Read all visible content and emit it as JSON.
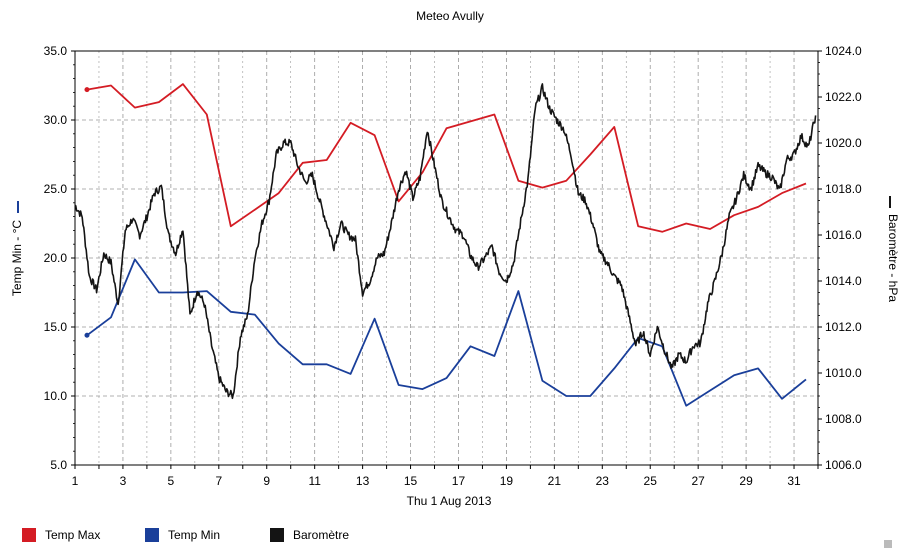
{
  "colors": {
    "temp_max": "#d41c24",
    "temp_min": "#1a3f9a",
    "barometre": "#141414",
    "grid": "#999999"
  },
  "chart_data": {
    "type": "line",
    "title": "Meteo  Avully",
    "xlabel": "Thu 1 Aug 2013",
    "ylabel_left": "Temp Min - °C",
    "ylabel_right": "Baromètre - hPa",
    "xlim": [
      1,
      32
    ],
    "ylim_left": [
      5,
      35
    ],
    "ylim_right": [
      1006,
      1024
    ],
    "x_ticks": [
      "1",
      "3",
      "5",
      "7",
      "9",
      "11",
      "13",
      "15",
      "17",
      "19",
      "21",
      "23",
      "25",
      "27",
      "29",
      "31"
    ],
    "y_left_ticks": [
      "5.0",
      "10.0",
      "15.0",
      "20.0",
      "25.0",
      "30.0",
      "35.0"
    ],
    "y_right_ticks": [
      "1006.0",
      "1008.0",
      "1010.0",
      "1012.0",
      "1014.0",
      "1016.0",
      "1018.0",
      "1020.0",
      "1022.0",
      "1024.0"
    ],
    "grid": true,
    "legend_position": "bottom-left",
    "series": [
      {
        "name": "Temp Max",
        "axis": "left",
        "x": [
          1.5,
          2.5,
          3.5,
          4.5,
          5.5,
          6.5,
          7.5,
          8.5,
          9.5,
          10.5,
          11.5,
          12.5,
          13.5,
          14.5,
          15.5,
          16.5,
          17.5,
          18.5,
          19.5,
          20.5,
          21.5,
          22.5,
          23.5,
          24.5,
          25.5,
          26.5,
          27.5,
          28.5,
          29.5,
          30.5,
          31.5
        ],
        "values": [
          32.2,
          32.5,
          30.9,
          31.3,
          32.6,
          30.4,
          22.3,
          23.5,
          24.7,
          26.9,
          27.1,
          29.8,
          28.9,
          24.1,
          26.2,
          29.4,
          29.9,
          30.4,
          25.6,
          25.1,
          25.6,
          27.5,
          29.5,
          22.3,
          21.9,
          22.5,
          22.1,
          23.1,
          23.7,
          24.7,
          25.4
        ]
      },
      {
        "name": "Temp Min",
        "axis": "left",
        "x": [
          1.5,
          2.5,
          3.5,
          4.5,
          5.5,
          6.5,
          7.5,
          8.5,
          9.5,
          10.5,
          11.5,
          12.5,
          13.5,
          14.5,
          15.5,
          16.5,
          17.5,
          18.5,
          19.5,
          20.5,
          21.5,
          22.5,
          23.5,
          24.5,
          25.5,
          26.5,
          27.5,
          28.5,
          29.5,
          30.5,
          31.5
        ],
        "values": [
          14.4,
          15.7,
          19.9,
          17.5,
          17.5,
          17.6,
          16.1,
          15.9,
          13.8,
          12.3,
          12.3,
          11.6,
          15.6,
          10.8,
          10.5,
          11.3,
          13.6,
          12.9,
          17.6,
          11.1,
          10.0,
          10.0,
          12.0,
          14.2,
          13.6,
          9.3,
          10.4,
          11.5,
          12.0,
          9.8,
          11.2
        ]
      },
      {
        "name": "Baromètre",
        "axis": "right",
        "x": [
          1,
          1.3,
          1.6,
          1.9,
          2.2,
          2.5,
          2.8,
          3.1,
          3.4,
          3.7,
          4,
          4.3,
          4.6,
          4.9,
          5.2,
          5.5,
          5.8,
          6.1,
          6.4,
          6.7,
          7,
          7.3,
          7.6,
          7.9,
          8.2,
          8.5,
          8.8,
          9.1,
          9.4,
          9.7,
          10,
          10.3,
          10.6,
          10.9,
          11.2,
          11.5,
          11.8,
          12.1,
          12.4,
          12.7,
          13,
          13.3,
          13.6,
          13.9,
          14.2,
          14.5,
          14.8,
          15.1,
          15.4,
          15.7,
          16,
          16.3,
          16.6,
          16.9,
          17.2,
          17.5,
          17.8,
          18.1,
          18.4,
          18.7,
          19,
          19.3,
          19.6,
          19.9,
          20.2,
          20.5,
          20.8,
          21.1,
          21.4,
          21.7,
          22,
          22.3,
          22.6,
          22.9,
          23.2,
          23.5,
          23.8,
          24.1,
          24.4,
          24.7,
          25,
          25.3,
          25.6,
          25.9,
          26.2,
          26.5,
          26.8,
          27.1,
          27.4,
          27.7,
          28,
          28.3,
          28.6,
          28.9,
          29.2,
          29.5,
          29.8,
          30.1,
          30.4,
          30.7,
          31,
          31.3,
          31.6,
          31.9
        ],
        "values": [
          1017.3,
          1016.8,
          1014.2,
          1013.6,
          1015.2,
          1014.8,
          1013.0,
          1016.2,
          1016.7,
          1016.0,
          1016.8,
          1017.8,
          1018.1,
          1016.0,
          1015.2,
          1016.3,
          1012.5,
          1013.6,
          1013.0,
          1011.2,
          1009.8,
          1009.2,
          1009.0,
          1011.6,
          1012.5,
          1015.0,
          1016.5,
          1017.5,
          1019.5,
          1020.0,
          1020.0,
          1019.0,
          1018.3,
          1018.6,
          1017.5,
          1016.5,
          1015.5,
          1016.5,
          1016.0,
          1015.8,
          1013.5,
          1014.0,
          1015.0,
          1015.2,
          1016.5,
          1018.0,
          1018.8,
          1017.6,
          1018.5,
          1020.6,
          1019.0,
          1017.5,
          1016.8,
          1016.2,
          1016.0,
          1015.1,
          1014.6,
          1015.0,
          1015.5,
          1014.4,
          1014.0,
          1014.8,
          1016.6,
          1018.4,
          1021.5,
          1022.4,
          1021.5,
          1021.0,
          1020.6,
          1019.5,
          1017.8,
          1017.5,
          1016.5,
          1015.2,
          1014.8,
          1014.2,
          1013.8,
          1012.5,
          1011.2,
          1011.8,
          1010.8,
          1012.0,
          1011.0,
          1010.2,
          1010.8,
          1010.5,
          1011.2,
          1011.3,
          1013.0,
          1014.0,
          1015.2,
          1016.8,
          1017.6,
          1018.6,
          1018.0,
          1019.0,
          1018.7,
          1018.5,
          1017.9,
          1019.3,
          1019.5,
          1020.3,
          1019.8,
          1021.2
        ]
      }
    ]
  }
}
